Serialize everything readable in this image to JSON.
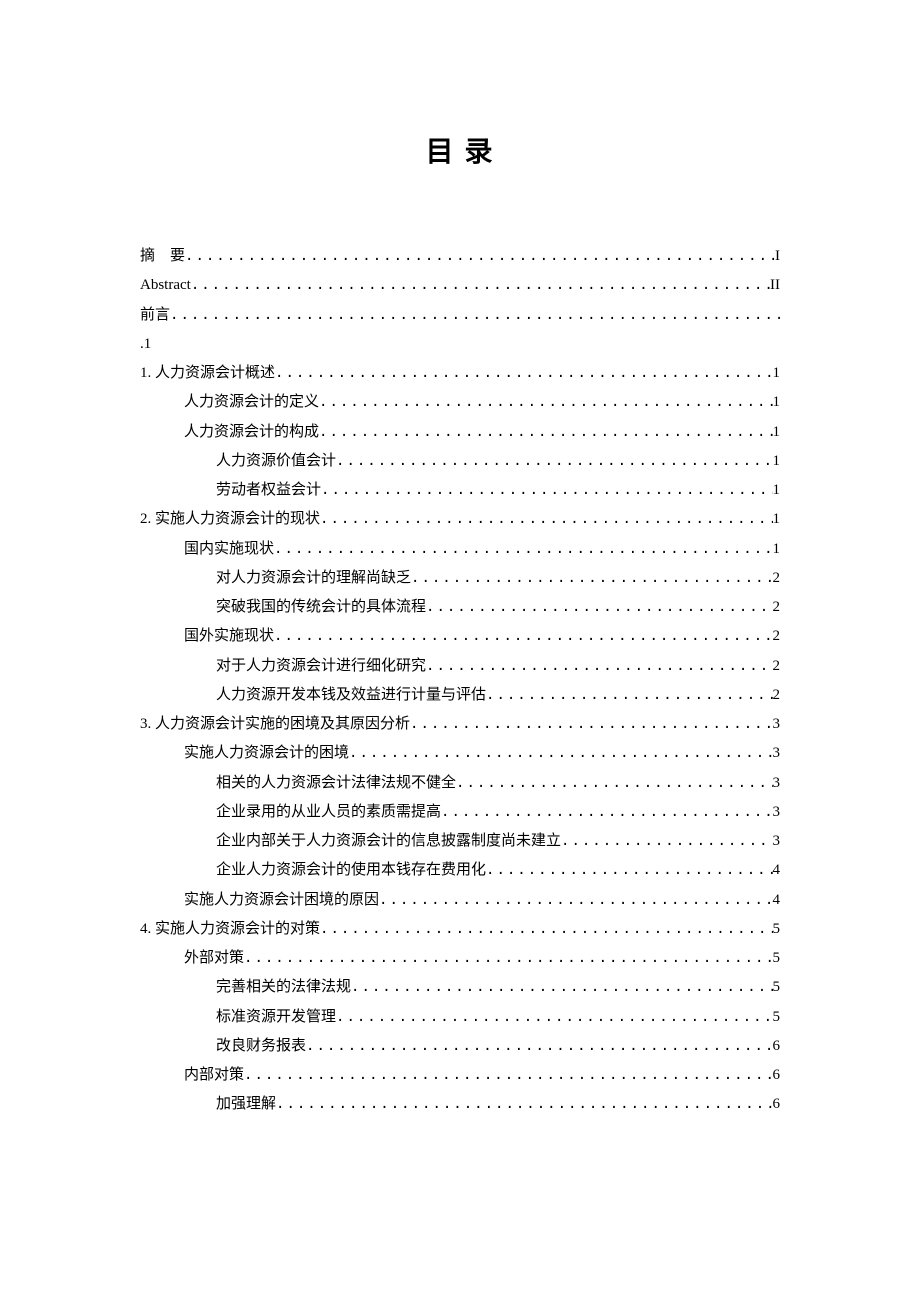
{
  "title": "目 录",
  "entries": [
    {
      "label": "摘　要",
      "page": "I",
      "indent": 0
    },
    {
      "label": "Abstract",
      "page": "II",
      "indent": 0
    },
    {
      "label": "前言",
      "page": ".1",
      "indent": 0,
      "wrap": true
    },
    {
      "label": "1. 人力资源会计概述",
      "page": "1",
      "indent": 0
    },
    {
      "label": "人力资源会计的定义",
      "page": "1",
      "indent": 1
    },
    {
      "label": "人力资源会计的构成",
      "page": "1",
      "indent": 1
    },
    {
      "label": "人力资源价值会计",
      "page": "1",
      "indent": 2
    },
    {
      "label": "劳动者权益会计",
      "page": "1",
      "indent": 2
    },
    {
      "label": "2. 实施人力资源会计的现状",
      "page": "1",
      "indent": 0
    },
    {
      "label": "国内实施现状",
      "page": "1",
      "indent": 1
    },
    {
      "label": "对人力资源会计的理解尚缺乏",
      "page": "2",
      "indent": 2
    },
    {
      "label": "突破我国的传统会计的具体流程",
      "page": "2",
      "indent": 2
    },
    {
      "label": "国外实施现状",
      "page": "2",
      "indent": 1
    },
    {
      "label": "对于人力资源会计进行细化研究",
      "page": "2",
      "indent": 2
    },
    {
      "label": "人力资源开发本钱及效益进行计量与评估",
      "page": "2",
      "indent": 2
    },
    {
      "label": "3. 人力资源会计实施的困境及其原因分析",
      "page": "3",
      "indent": 0
    },
    {
      "label": "实施人力资源会计的困境",
      "page": "3",
      "indent": 1
    },
    {
      "label": "相关的人力资源会计法律法规不健全",
      "page": "3",
      "indent": 2
    },
    {
      "label": "企业录用的从业人员的素质需提高",
      "page": "3",
      "indent": 2
    },
    {
      "label": "企业内部关于人力资源会计的信息披露制度尚未建立",
      "page": "3",
      "indent": 2
    },
    {
      "label": "企业人力资源会计的使用本钱存在费用化",
      "page": "4",
      "indent": 2
    },
    {
      "label": "实施人力资源会计困境的原因",
      "page": "4",
      "indent": 1
    },
    {
      "label": "4. 实施人力资源会计的对策",
      "page": "5",
      "indent": 0
    },
    {
      "label": "外部对策",
      "page": "5",
      "indent": 1
    },
    {
      "label": "完善相关的法律法规",
      "page": "5",
      "indent": 2
    },
    {
      "label": "标准资源开发管理",
      "page": "5",
      "indent": 2
    },
    {
      "label": "改良财务报表",
      "page": "6",
      "indent": 2
    },
    {
      "label": "内部对策",
      "page": "6",
      "indent": 1
    },
    {
      "label": "加强理解",
      "page": "6",
      "indent": 2
    }
  ]
}
